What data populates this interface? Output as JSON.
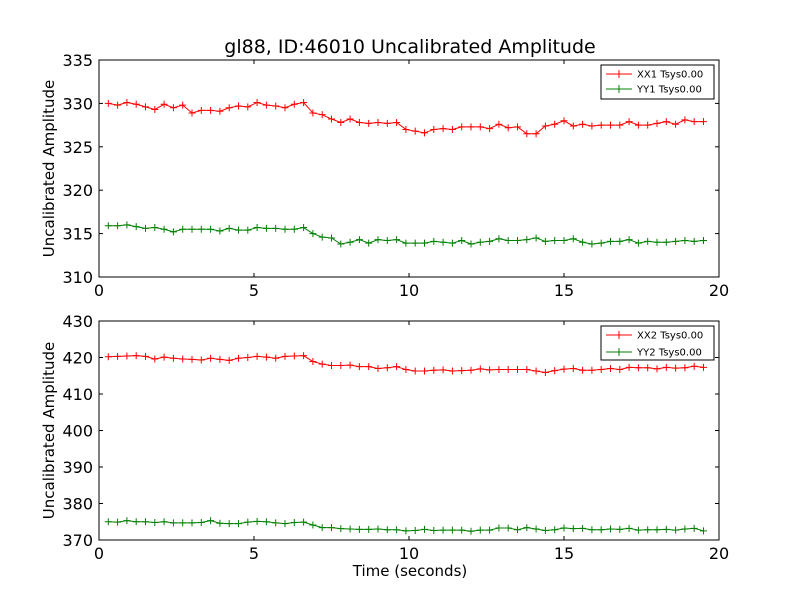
{
  "chart_data": [
    {
      "type": "line",
      "title": "gl88, ID:46010 Uncalibrated Amplitude",
      "xlabel": "",
      "ylabel": "Uncalibrated Amplitude",
      "xlim": [
        0,
        20
      ],
      "ylim": [
        310,
        335
      ],
      "xticks": [
        "0",
        "5",
        "10",
        "15",
        "20"
      ],
      "yticks": [
        "310",
        "315",
        "320",
        "325",
        "330",
        "335"
      ],
      "legend_position": "top-right",
      "grid": false,
      "x": [
        0.3,
        0.6,
        0.9,
        1.2,
        1.5,
        1.8,
        2.1,
        2.4,
        2.7,
        3.0,
        3.3,
        3.6,
        3.9,
        4.2,
        4.5,
        4.8,
        5.1,
        5.4,
        5.7,
        6.0,
        6.3,
        6.6,
        6.9,
        7.2,
        7.5,
        7.8,
        8.1,
        8.4,
        8.7,
        9.0,
        9.3,
        9.6,
        9.9,
        10.2,
        10.5,
        10.8,
        11.1,
        11.4,
        11.7,
        12.0,
        12.3,
        12.6,
        12.9,
        13.2,
        13.5,
        13.8,
        14.1,
        14.4,
        14.7,
        15.0,
        15.3,
        15.6,
        15.9,
        16.2,
        16.5,
        16.8,
        17.1,
        17.4,
        17.7,
        18.0,
        18.3,
        18.6,
        18.9,
        19.2,
        19.5
      ],
      "series": [
        {
          "name": "XX1 Tsys0.00",
          "color": "#ff0000",
          "values": [
            330.0,
            329.8,
            330.1,
            329.9,
            329.6,
            329.3,
            329.9,
            329.5,
            329.8,
            328.9,
            329.2,
            329.2,
            329.1,
            329.5,
            329.7,
            329.6,
            330.1,
            329.8,
            329.7,
            329.5,
            329.9,
            330.1,
            328.9,
            328.7,
            328.2,
            327.8,
            328.2,
            327.8,
            327.7,
            327.8,
            327.7,
            327.8,
            327.0,
            326.8,
            326.6,
            327.0,
            327.1,
            327.0,
            327.3,
            327.3,
            327.3,
            327.1,
            327.6,
            327.2,
            327.3,
            326.5,
            326.5,
            327.4,
            327.6,
            328.0,
            327.4,
            327.6,
            327.4,
            327.5,
            327.5,
            327.5,
            327.9,
            327.5,
            327.5,
            327.7,
            327.9,
            327.6,
            328.1,
            327.9,
            327.9
          ]
        },
        {
          "name": "YY1 Tsys0.00",
          "color": "#008000",
          "values": [
            315.9,
            315.9,
            316.0,
            315.8,
            315.6,
            315.7,
            315.5,
            315.2,
            315.5,
            315.5,
            315.5,
            315.5,
            315.3,
            315.6,
            315.4,
            315.4,
            315.7,
            315.6,
            315.6,
            315.5,
            315.5,
            315.7,
            315.0,
            314.6,
            314.5,
            313.8,
            314.0,
            314.3,
            313.9,
            314.3,
            314.2,
            314.3,
            313.9,
            313.9,
            313.9,
            314.1,
            314.0,
            313.9,
            314.2,
            313.8,
            314.0,
            314.1,
            314.4,
            314.2,
            314.2,
            314.3,
            314.5,
            314.1,
            314.2,
            314.2,
            314.4,
            314.0,
            313.8,
            313.9,
            314.1,
            314.1,
            314.3,
            313.9,
            314.1,
            314.0,
            314.0,
            314.1,
            314.2,
            314.1,
            314.2
          ]
        }
      ]
    },
    {
      "type": "line",
      "title": "",
      "xlabel": "Time (seconds)",
      "ylabel": "Uncalibrated Amplitude",
      "xlim": [
        0,
        20
      ],
      "ylim": [
        370,
        430
      ],
      "xticks": [
        "0",
        "5",
        "10",
        "15",
        "20"
      ],
      "yticks": [
        "370",
        "380",
        "390",
        "400",
        "410",
        "420",
        "430"
      ],
      "legend_position": "top-right",
      "grid": false,
      "x": [
        0.3,
        0.6,
        0.9,
        1.2,
        1.5,
        1.8,
        2.1,
        2.4,
        2.7,
        3.0,
        3.3,
        3.6,
        3.9,
        4.2,
        4.5,
        4.8,
        5.1,
        5.4,
        5.7,
        6.0,
        6.3,
        6.6,
        6.9,
        7.2,
        7.5,
        7.8,
        8.1,
        8.4,
        8.7,
        9.0,
        9.3,
        9.6,
        9.9,
        10.2,
        10.5,
        10.8,
        11.1,
        11.4,
        11.7,
        12.0,
        12.3,
        12.6,
        12.9,
        13.2,
        13.5,
        13.8,
        14.1,
        14.4,
        14.7,
        15.0,
        15.3,
        15.6,
        15.9,
        16.2,
        16.5,
        16.8,
        17.1,
        17.4,
        17.7,
        18.0,
        18.3,
        18.6,
        18.9,
        19.2,
        19.5
      ],
      "series": [
        {
          "name": "XX2 Tsys0.00",
          "color": "#ff0000",
          "values": [
            420.2,
            420.3,
            420.4,
            420.5,
            420.3,
            419.6,
            420.1,
            419.8,
            419.6,
            419.5,
            419.3,
            419.8,
            419.5,
            419.2,
            419.8,
            420.0,
            420.3,
            420.1,
            419.8,
            420.3,
            420.4,
            420.5,
            418.9,
            418.2,
            417.8,
            417.8,
            417.9,
            417.5,
            417.5,
            417.0,
            417.2,
            417.5,
            416.7,
            416.3,
            416.3,
            416.5,
            416.6,
            416.3,
            416.4,
            416.5,
            416.9,
            416.6,
            416.7,
            416.7,
            416.7,
            416.7,
            416.3,
            415.9,
            416.4,
            416.8,
            417.0,
            416.5,
            416.5,
            416.7,
            417.0,
            416.7,
            417.3,
            417.2,
            417.2,
            416.9,
            417.3,
            417.1,
            417.2,
            417.6,
            417.3
          ]
        },
        {
          "name": "YY2 Tsys0.00",
          "color": "#008000",
          "values": [
            375.0,
            374.9,
            375.3,
            375.0,
            375.0,
            374.8,
            375.0,
            374.7,
            374.7,
            374.7,
            374.8,
            375.3,
            374.6,
            374.5,
            374.5,
            374.9,
            375.1,
            375.0,
            374.7,
            374.5,
            374.8,
            374.9,
            374.1,
            373.4,
            373.4,
            373.1,
            373.0,
            372.9,
            372.9,
            373.0,
            372.8,
            372.8,
            372.5,
            372.6,
            372.9,
            372.6,
            372.7,
            372.7,
            372.7,
            372.4,
            372.7,
            372.7,
            373.3,
            373.3,
            372.8,
            373.4,
            373.0,
            372.6,
            372.8,
            373.3,
            373.1,
            373.2,
            372.8,
            372.8,
            373.0,
            372.9,
            373.2,
            372.7,
            372.8,
            372.8,
            372.9,
            372.7,
            373.0,
            373.2,
            372.5
          ]
        }
      ]
    }
  ]
}
